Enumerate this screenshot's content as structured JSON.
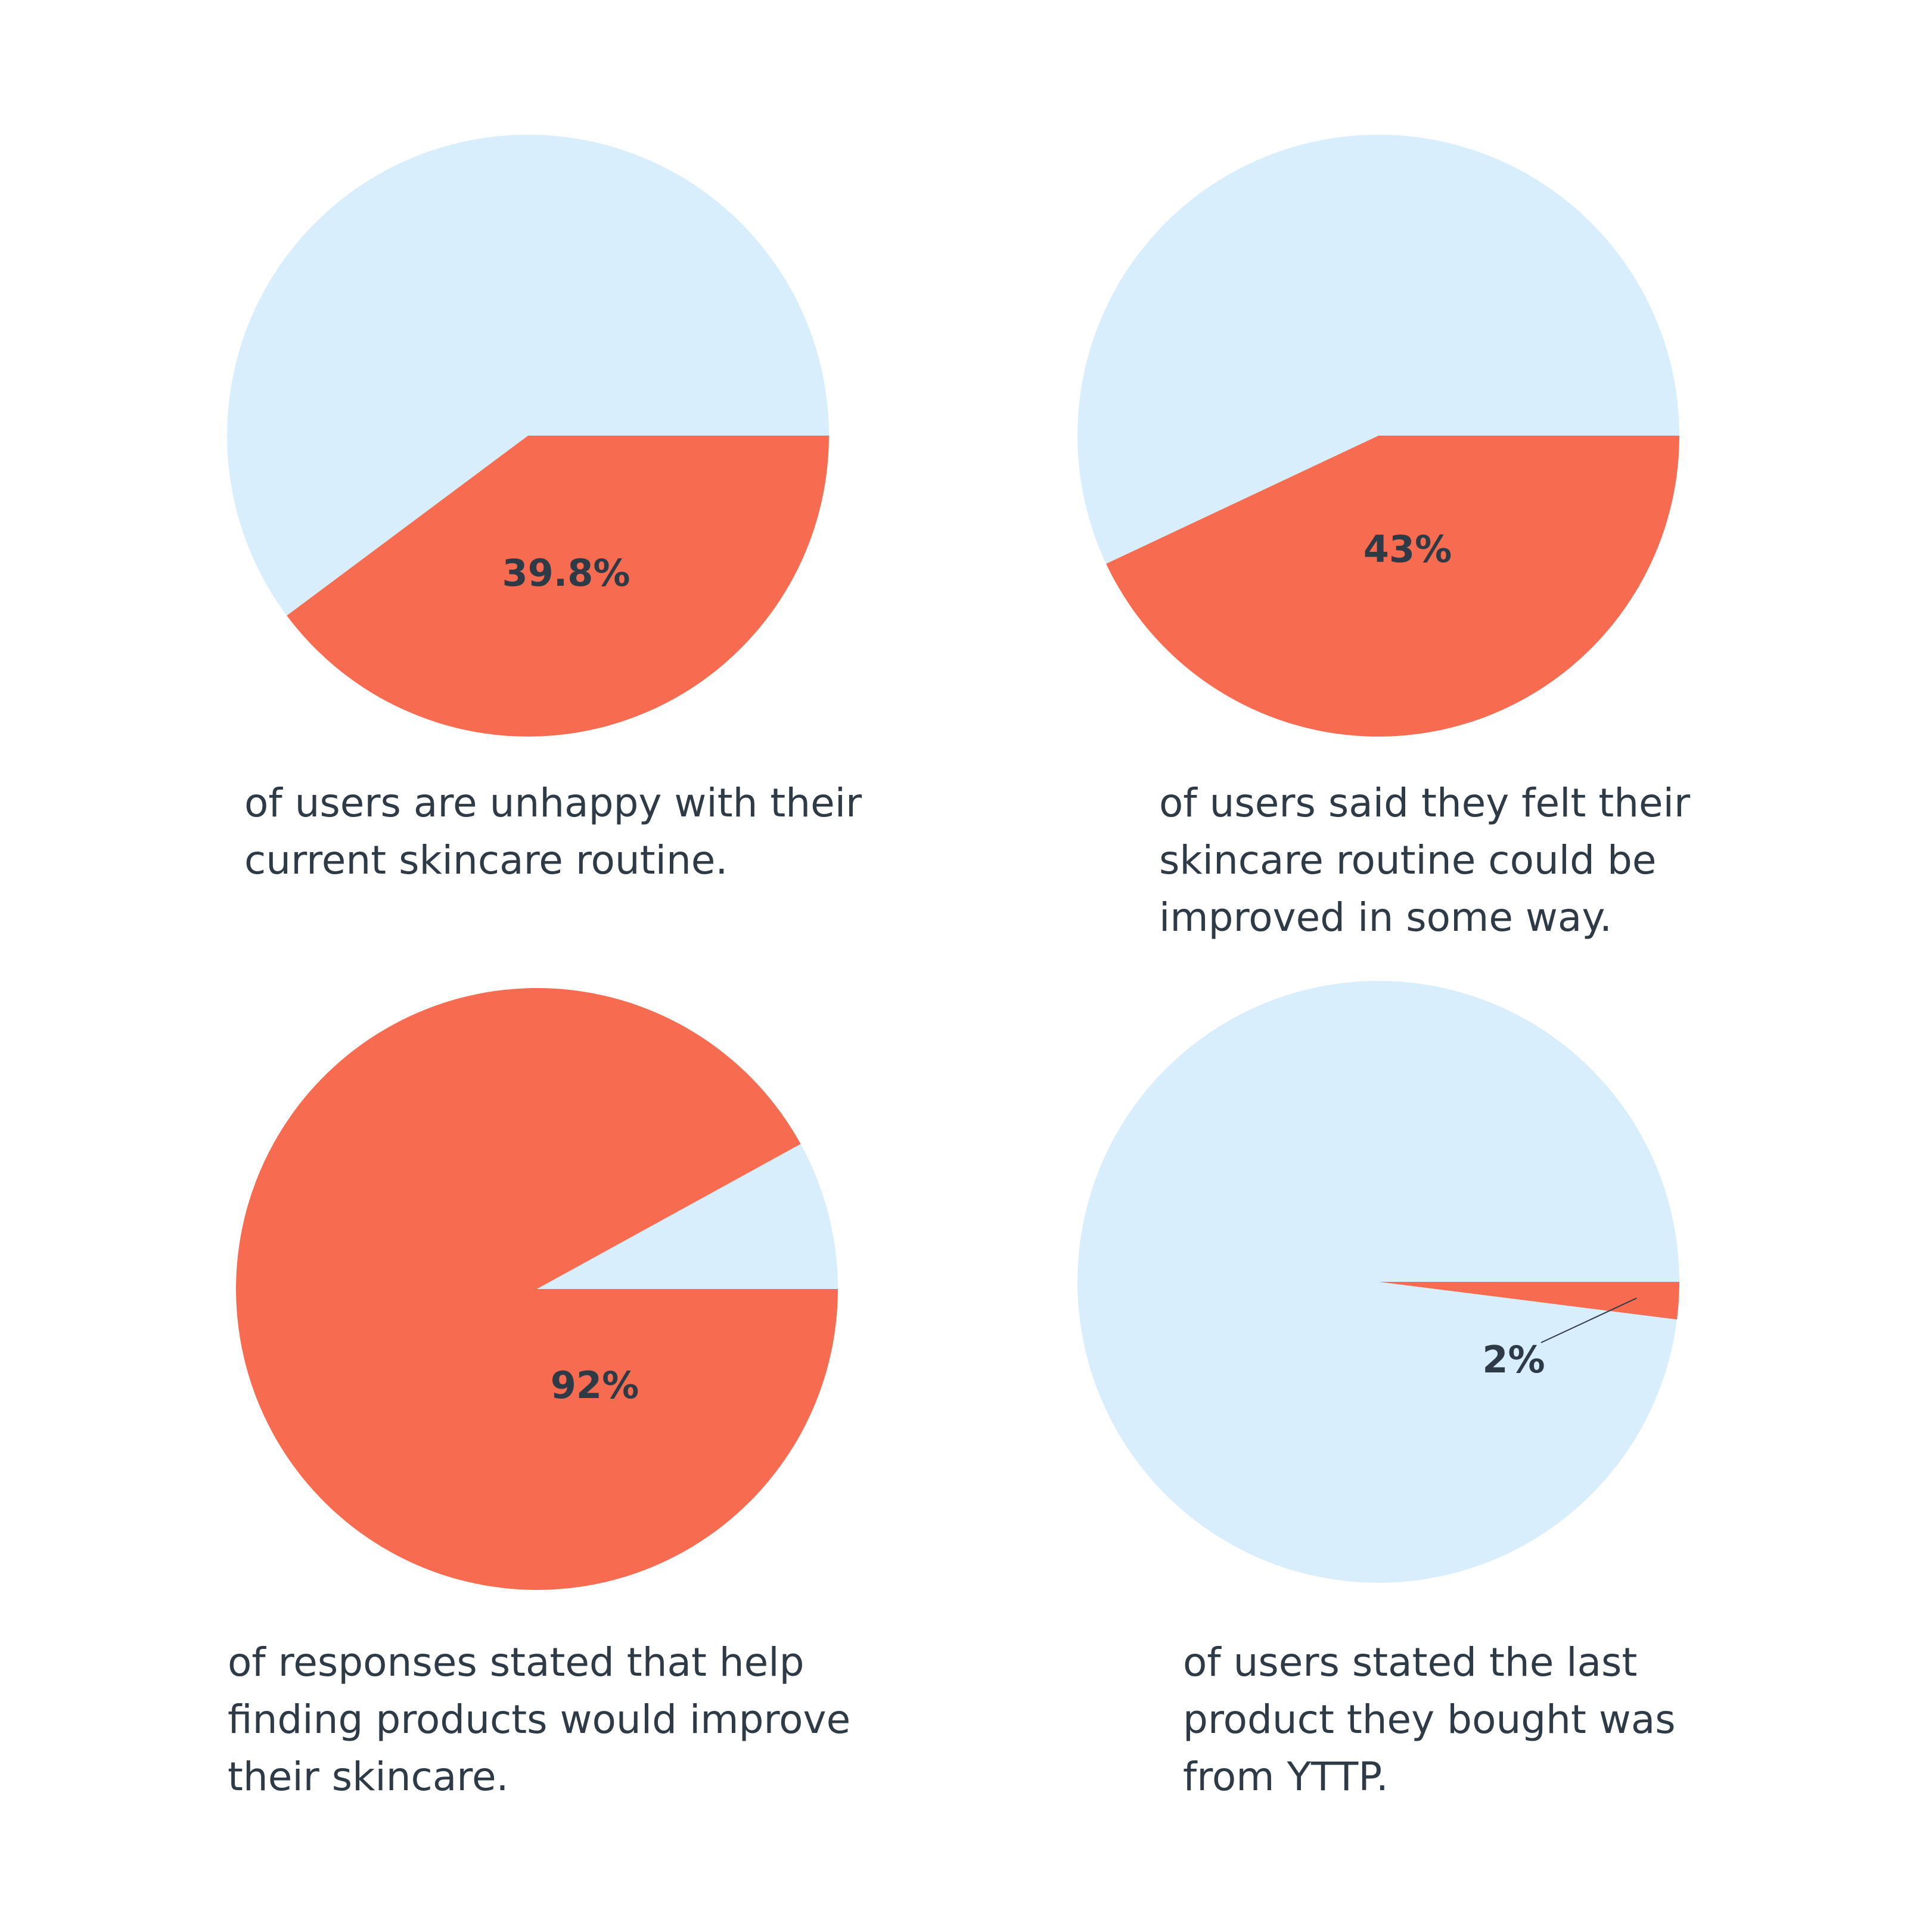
{
  "colors": {
    "highlight": "#f76c50",
    "remainder": "#d9eefc",
    "text": "#2e3b46"
  },
  "chart_data": [
    {
      "type": "pie",
      "values": [
        39.8,
        60.2
      ],
      "labels": [
        "39.8%",
        ""
      ],
      "caption": [
        "of users are unhappy with their",
        "current skincare routine."
      ]
    },
    {
      "type": "pie",
      "values": [
        43,
        57
      ],
      "labels": [
        "43%",
        ""
      ],
      "caption": [
        "of users said they felt their",
        "skincare routine could be",
        "improved in some way."
      ]
    },
    {
      "type": "pie",
      "values": [
        92,
        8
      ],
      "labels": [
        "92%",
        ""
      ],
      "caption": [
        "of responses stated that help",
        "finding products would improve",
        "their skincare."
      ]
    },
    {
      "type": "pie",
      "values": [
        2,
        98
      ],
      "labels": [
        "2%",
        ""
      ],
      "caption": [
        "of users stated the last",
        "product they bought was",
        "from YTTP."
      ]
    }
  ]
}
